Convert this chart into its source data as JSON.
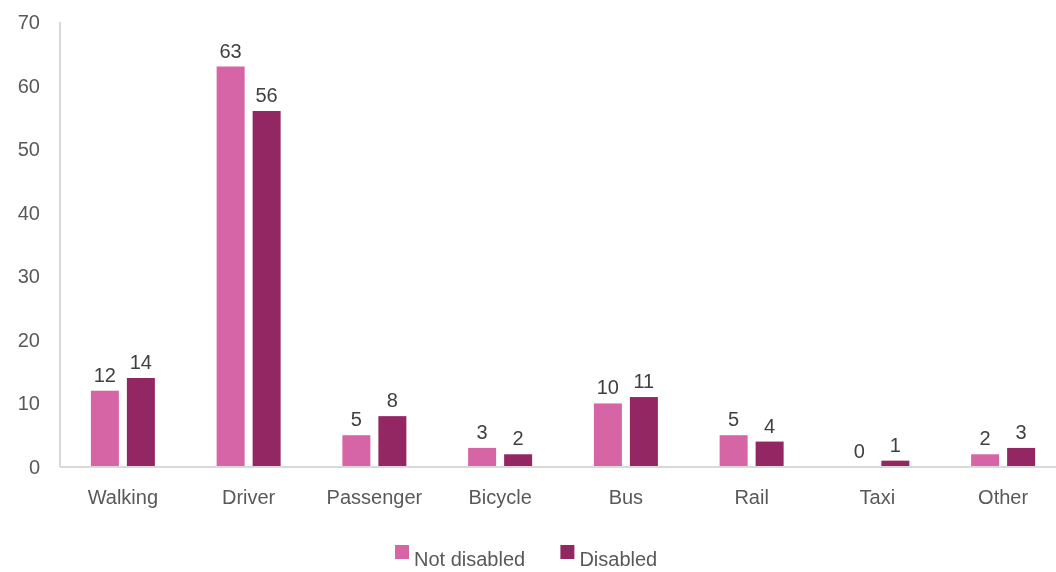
{
  "chart_data": {
    "type": "bar",
    "categories": [
      "Walking",
      "Driver",
      "Passenger",
      "Bicycle",
      "Bus",
      "Rail",
      "Taxi",
      "Other"
    ],
    "series": [
      {
        "name": "Not disabled",
        "color": "#d665a6",
        "values": [
          12,
          63,
          5,
          3,
          10,
          5,
          0,
          2
        ]
      },
      {
        "name": "Disabled",
        "color": "#922764",
        "values": [
          14,
          56,
          8,
          2,
          11,
          4,
          1,
          3
        ]
      }
    ],
    "ylim": [
      0,
      70
    ],
    "yticks": [
      0,
      10,
      20,
      30,
      40,
      50,
      60,
      70
    ],
    "data_labels": true,
    "grid": false,
    "legend": "bottom"
  }
}
